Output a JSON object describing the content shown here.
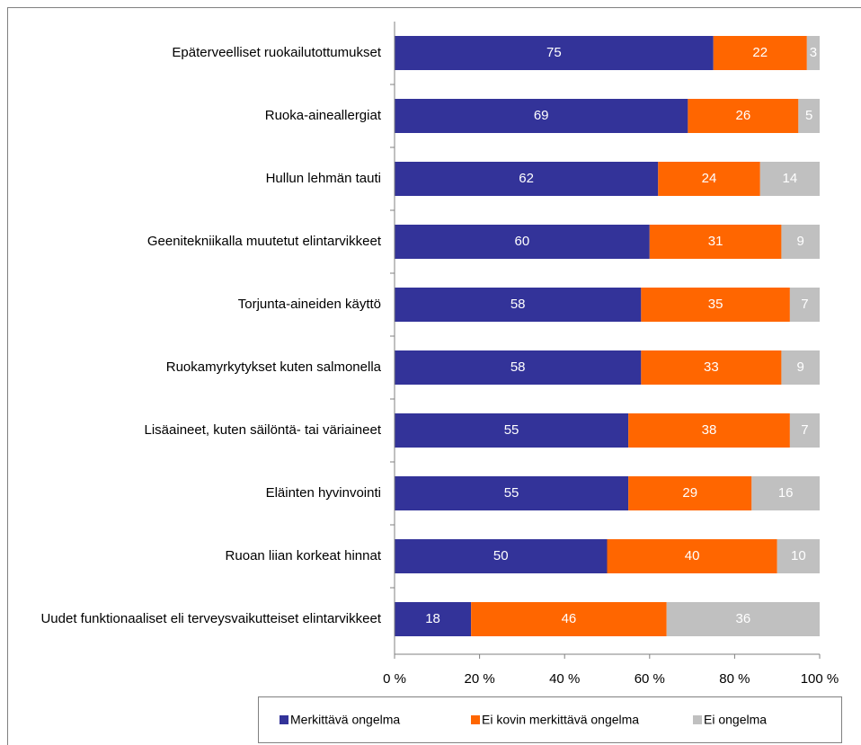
{
  "chart_data": {
    "type": "stacked-bar-horizontal",
    "categories": [
      "Epäterveelliset ruokailutottumukset",
      "Ruoka-aineallergiat",
      "Hullun lehmän tauti",
      "Geenitekniikalla muutetut elintarvikkeet",
      "Torjunta-aineiden käyttö",
      "Ruokamyrkytykset kuten salmonella",
      "Lisäaineet, kuten säilöntä- tai väriaineet",
      "Eläinten hyvinvointi",
      "Ruoan liian korkeat hinnat",
      "Uudet funktionaaliset eli terveysvaikutteiset elintarvikkeet"
    ],
    "series": [
      {
        "name": "Merkittävä ongelma",
        "color": "#333399",
        "values": [
          75,
          69,
          62,
          60,
          58,
          58,
          55,
          55,
          50,
          18
        ]
      },
      {
        "name": "Ei kovin merkittävä ongelma",
        "color": "#ff6600",
        "values": [
          22,
          26,
          24,
          31,
          35,
          33,
          38,
          29,
          40,
          46
        ]
      },
      {
        "name": "Ei ongelma",
        "color": "#c0c0c0",
        "values": [
          3,
          5,
          14,
          9,
          7,
          9,
          7,
          16,
          10,
          36
        ]
      }
    ],
    "xlim": [
      0,
      100
    ],
    "xticks": [
      {
        "value": 0,
        "label": "0 %"
      },
      {
        "value": 20,
        "label": "20 %"
      },
      {
        "value": 40,
        "label": "40 %"
      },
      {
        "value": 60,
        "label": "60 %"
      },
      {
        "value": 80,
        "label": "80 %"
      },
      {
        "value": 100,
        "label": "100 %"
      }
    ],
    "legend": "bottom"
  }
}
